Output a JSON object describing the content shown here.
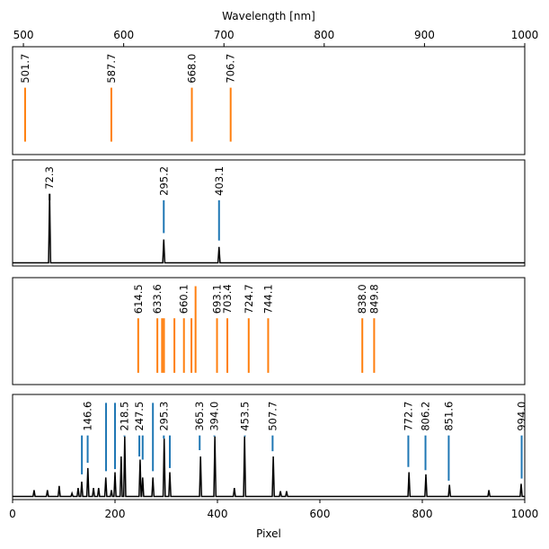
{
  "chart_data": [
    {
      "type": "spectrum",
      "xlabel": "Wavelength [nm]",
      "axis_side": "top",
      "xlim": [
        489.2,
        1000
      ],
      "xticks": [
        500,
        600,
        700,
        800,
        900,
        1000
      ],
      "ylim": [
        0,
        1
      ],
      "lines": [
        {
          "x": 501.7,
          "y": [
            0.12,
            0.62
          ],
          "label": "501.7",
          "color": "#ff7f0e"
        },
        {
          "x": 587.7,
          "y": [
            0.12,
            0.62
          ],
          "label": "587.7",
          "color": "#ff7f0e"
        },
        {
          "x": 668.0,
          "y": [
            0.12,
            0.62
          ],
          "label": "668.0",
          "color": "#ff7f0e"
        },
        {
          "x": 706.7,
          "y": [
            0.12,
            0.62
          ],
          "label": "706.7",
          "color": "#ff7f0e"
        }
      ]
    },
    {
      "type": "spectrum",
      "xlim": [
        0,
        1000
      ],
      "ylim": [
        0,
        1
      ],
      "series": [
        {
          "color": "#000000",
          "x": [
            0,
            70.3,
            72.3,
            74.3,
            293.2,
            295.2,
            297.2,
            401.1,
            403.1,
            405.1,
            1000
          ],
          "values": [
            0.03,
            0.03,
            0.68,
            0.03,
            0.03,
            0.25,
            0.03,
            0.03,
            0.18,
            0.03,
            0.03
          ]
        }
      ],
      "lines": [
        {
          "x": 72.3,
          "y": [
            0.62,
            0.68
          ],
          "label": "72.3",
          "color": "#000000"
        },
        {
          "x": 295.2,
          "y": [
            0.31,
            0.62
          ],
          "label": "295.2",
          "color": "#1f77b4"
        },
        {
          "x": 403.1,
          "y": [
            0.24,
            0.62
          ],
          "label": "403.1",
          "color": "#1f77b4"
        }
      ]
    },
    {
      "type": "spectrum",
      "xlim": [
        489.2,
        1000
      ],
      "ylim": [
        0,
        1
      ],
      "lines": [
        {
          "x": 614.5,
          "y": [
            0.11,
            0.62
          ],
          "label": "614.5",
          "color": "#ff7f0e"
        },
        {
          "x": 633.6,
          "y": [
            0.11,
            0.62
          ],
          "label": "633.6",
          "color": "#ff7f0e"
        },
        {
          "x": 638.3,
          "y": [
            0.11,
            0.62
          ],
          "label": null,
          "color": "#ff7f0e"
        },
        {
          "x": 640.2,
          "y": [
            0.11,
            0.62
          ],
          "label": null,
          "color": "#ff7f0e"
        },
        {
          "x": 650.6,
          "y": [
            0.11,
            0.62
          ],
          "label": null,
          "color": "#ff7f0e"
        },
        {
          "x": 660.1,
          "y": [
            0.11,
            0.62
          ],
          "label": "660.1",
          "color": "#ff7f0e"
        },
        {
          "x": 667.6,
          "y": [
            0.11,
            0.62
          ],
          "label": null,
          "color": "#ff7f0e"
        },
        {
          "x": 671.7,
          "y": [
            0.11,
            0.92
          ],
          "label": null,
          "color": "#ff7f0e"
        },
        {
          "x": 693.1,
          "y": [
            0.11,
            0.62
          ],
          "label": "693.1",
          "color": "#ff7f0e"
        },
        {
          "x": 703.4,
          "y": [
            0.11,
            0.62
          ],
          "label": "703.4",
          "color": "#ff7f0e"
        },
        {
          "x": 724.7,
          "y": [
            0.11,
            0.62
          ],
          "label": "724.7",
          "color": "#ff7f0e"
        },
        {
          "x": 744.1,
          "y": [
            0.11,
            0.62
          ],
          "label": "744.1",
          "color": "#ff7f0e"
        },
        {
          "x": 838.0,
          "y": [
            0.11,
            0.62
          ],
          "label": "838.0",
          "color": "#ff7f0e"
        },
        {
          "x": 849.8,
          "y": [
            0.11,
            0.62
          ],
          "label": "849.8",
          "color": "#ff7f0e"
        }
      ]
    },
    {
      "type": "spectrum",
      "xlabel": "Pixel",
      "axis_side": "bottom",
      "xlim": [
        0,
        1000
      ],
      "xticks": [
        0,
        200,
        400,
        600,
        800,
        1000
      ],
      "ylim": [
        0,
        1
      ],
      "series": [
        {
          "color": "#000000",
          "x": [
            0,
            40,
            42,
            44,
            66,
            68,
            70,
            89,
            91,
            93,
            114,
            116,
            118,
            126,
            128,
            130,
            133,
            135,
            137,
            145,
            147,
            149,
            156,
            158,
            160,
            166,
            168,
            170,
            180,
            182,
            184,
            191,
            193,
            195,
            198,
            200,
            202,
            210,
            212,
            214,
            217,
            219,
            221,
            247,
            249,
            251,
            252,
            254,
            256,
            272,
            274,
            276,
            294,
            296,
            298,
            305,
            307,
            309,
            365,
            367,
            369,
            393,
            395,
            397,
            431,
            433,
            435,
            451,
            453,
            455,
            507,
            509,
            511,
            521,
            523,
            525,
            533,
            535,
            537,
            772,
            774,
            776,
            805,
            807,
            809,
            851,
            853,
            855,
            928,
            930,
            932,
            991,
            993,
            995,
            1000
          ],
          "values": [
            0.03,
            0.03,
            0.09,
            0.03,
            0.03,
            0.09,
            0.03,
            0.03,
            0.13,
            0.03,
            0.03,
            0.06,
            0.03,
            0.03,
            0.11,
            0.03,
            0.03,
            0.17,
            0.03,
            0.03,
            0.3,
            0.03,
            0.03,
            0.11,
            0.03,
            0.03,
            0.11,
            0.03,
            0.03,
            0.21,
            0.03,
            0.03,
            0.09,
            0.03,
            0.03,
            0.26,
            0.03,
            0.03,
            0.41,
            0.03,
            0.03,
            0.6,
            0.03,
            0.03,
            0.38,
            0.03,
            0.03,
            0.21,
            0.03,
            0.03,
            0.21,
            0.03,
            0.03,
            0.58,
            0.03,
            0.03,
            0.26,
            0.03,
            0.03,
            0.41,
            0.03,
            0.03,
            0.6,
            0.03,
            0.03,
            0.11,
            0.03,
            0.03,
            0.6,
            0.03,
            0.03,
            0.41,
            0.03,
            0.03,
            0.08,
            0.03,
            0.03,
            0.08,
            0.03,
            0.03,
            0.26,
            0.03,
            0.03,
            0.24,
            0.03,
            0.03,
            0.14,
            0.03,
            0.03,
            0.09,
            0.03,
            0.03,
            0.15,
            0.03,
            0.03
          ]
        }
      ],
      "lines": [
        {
          "x": 135.3,
          "y": [
            0.24,
            0.61
          ],
          "label": null,
          "color": "#1f77b4"
        },
        {
          "x": 146.6,
          "y": [
            0.35,
            0.61
          ],
          "label": "146.6",
          "color": "#1f77b4"
        },
        {
          "x": 182.5,
          "y": [
            0.27,
            0.92
          ],
          "label": null,
          "color": "#1f77b4"
        },
        {
          "x": 200.0,
          "y": [
            0.29,
            0.92
          ],
          "label": null,
          "color": "#1f77b4"
        },
        {
          "x": 218.5,
          "y": [
            0.6,
            0.61
          ],
          "label": "218.5",
          "color": "#1f77b4"
        },
        {
          "x": 247.5,
          "y": [
            0.41,
            0.61
          ],
          "label": "247.5",
          "color": "#1f77b4"
        },
        {
          "x": 254.0,
          "y": [
            0.38,
            0.61
          ],
          "label": null,
          "color": "#1f77b4"
        },
        {
          "x": 274.0,
          "y": [
            0.27,
            0.92
          ],
          "label": null,
          "color": "#1f77b4"
        },
        {
          "x": 295.3,
          "y": [
            0.58,
            0.61
          ],
          "label": "295.3",
          "color": "#1f77b4"
        },
        {
          "x": 307.0,
          "y": [
            0.3,
            0.61
          ],
          "label": null,
          "color": "#1f77b4"
        },
        {
          "x": 365.3,
          "y": [
            0.47,
            0.61
          ],
          "label": "365.3",
          "color": "#1f77b4"
        },
        {
          "x": 394.0,
          "y": [
            0.6,
            0.61
          ],
          "label": "394.0",
          "color": "#1f77b4"
        },
        {
          "x": 453.5,
          "y": [
            0.6,
            0.61
          ],
          "label": "453.5",
          "color": "#1f77b4"
        },
        {
          "x": 507.7,
          "y": [
            0.46,
            0.61
          ],
          "label": "507.7",
          "color": "#1f77b4"
        },
        {
          "x": 772.7,
          "y": [
            0.31,
            0.61
          ],
          "label": "772.7",
          "color": "#1f77b4"
        },
        {
          "x": 806.2,
          "y": [
            0.28,
            0.61
          ],
          "label": "806.2",
          "color": "#1f77b4"
        },
        {
          "x": 851.6,
          "y": [
            0.18,
            0.61
          ],
          "label": "851.6",
          "color": "#1f77b4"
        },
        {
          "x": 994.0,
          "y": [
            0.2,
            0.61
          ],
          "label": "994.0",
          "color": "#1f77b4"
        }
      ]
    }
  ]
}
